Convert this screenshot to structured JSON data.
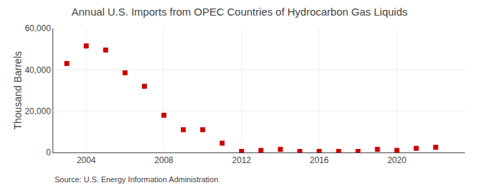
{
  "chart_data": {
    "type": "scatter",
    "title": "Annual U.S. Imports from OPEC Countries of Hydrocarbon Gas Liquids",
    "ylabel": "Thousand Barrels",
    "annotations": [
      "Source: U.S. Energy Information Administration"
    ],
    "x": [
      2003,
      2004,
      2005,
      2006,
      2007,
      2008,
      2009,
      2010,
      2011,
      2012,
      2013,
      2014,
      2015,
      2016,
      2017,
      2018,
      2019,
      2020,
      2021,
      2022
    ],
    "values": [
      43000,
      51500,
      49500,
      38500,
      32000,
      18000,
      11000,
      11000,
      4500,
      500,
      1000,
      1500,
      500,
      500,
      500,
      500,
      1500,
      1000,
      2000,
      2500
    ],
    "color": "#cc0000",
    "marker": "square",
    "xlim": [
      2002.3,
      2023.5
    ],
    "xticks": [
      2004,
      2008,
      2012,
      2016,
      2020
    ],
    "ylim": [
      0,
      60000
    ],
    "yticks": [
      0,
      {
        "value": 20000,
        "label": "20,000"
      },
      {
        "value": 40000,
        "label": "40,000"
      },
      {
        "value": 60000,
        "label": "60,000"
      }
    ],
    "grid": true
  }
}
